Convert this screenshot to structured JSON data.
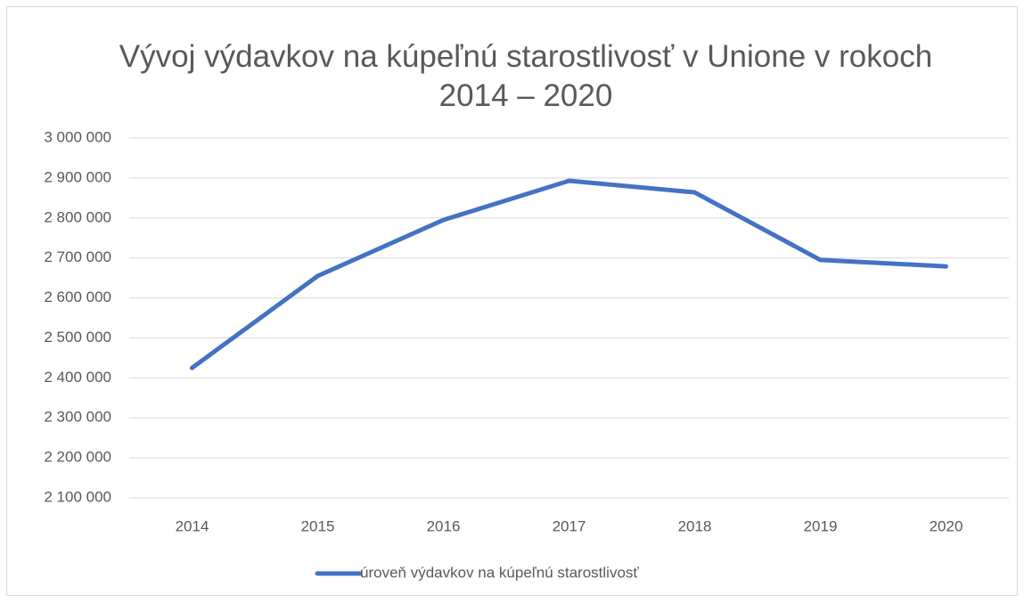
{
  "chart_data": {
    "type": "line",
    "title": "Vývoj výdavkov na kúpeľnú starostlivosť v Unione v rokoch 2014 – 2020",
    "categories": [
      "2014",
      "2015",
      "2016",
      "2017",
      "2018",
      "2019",
      "2020"
    ],
    "series": [
      {
        "name": "úroveň výdavkov na kúpeľnú starostlivosť",
        "color": "#4472c4",
        "values": [
          2425000,
          2655000,
          2795000,
          2893000,
          2864000,
          2695000,
          2679000
        ]
      }
    ],
    "ylim": [
      2100000,
      3000000
    ],
    "yticks": [
      {
        "value": 2100000,
        "label": "2 100 000"
      },
      {
        "value": 2200000,
        "label": "2 200 000"
      },
      {
        "value": 2300000,
        "label": "2 300 000"
      },
      {
        "value": 2400000,
        "label": "2 400 000"
      },
      {
        "value": 2500000,
        "label": "2 500 000"
      },
      {
        "value": 2600000,
        "label": "2 600 000"
      },
      {
        "value": 2700000,
        "label": "2 700 000"
      },
      {
        "value": 2800000,
        "label": "2 800 000"
      },
      {
        "value": 2900000,
        "label": "2 900 000"
      },
      {
        "value": 3000000,
        "label": "3 000 000"
      }
    ],
    "grid": true,
    "legend": "bottom"
  }
}
